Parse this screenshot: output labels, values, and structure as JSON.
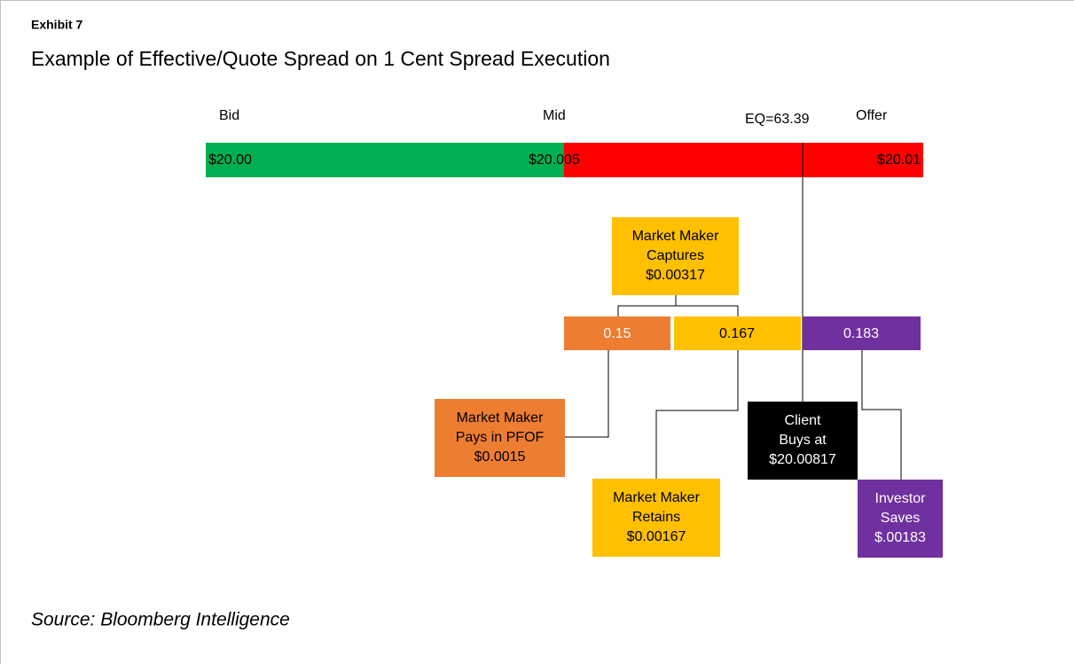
{
  "header": {
    "exhibit": "Exhibit 7",
    "title": "Example of Effective/Quote Spread on 1 Cent Spread Execution"
  },
  "scale_labels": {
    "bid": "Bid",
    "mid": "Mid",
    "eq": "EQ=63.39",
    "offer": "Offer"
  },
  "price_bar": {
    "left": "$20.00",
    "mid": "$20.005",
    "right": "$20.01"
  },
  "captures": {
    "lines": [
      "Market Maker",
      "Captures",
      "$0.00317"
    ]
  },
  "split": {
    "pfof": "0.15",
    "retain": "0.167",
    "saves": "0.183"
  },
  "pfof_box": {
    "lines": [
      "Market Maker",
      "Pays in PFOF",
      "$0.0015"
    ]
  },
  "retain_box": {
    "lines": [
      "Market Maker",
      "Retains",
      "$0.00167"
    ]
  },
  "client_box": {
    "lines": [
      "Client",
      "Buys at",
      "$20.00817"
    ]
  },
  "saves_box": {
    "lines": [
      "Investor",
      "Saves",
      "$.00183"
    ]
  },
  "source": "Source: Bloomberg Intelligence"
}
